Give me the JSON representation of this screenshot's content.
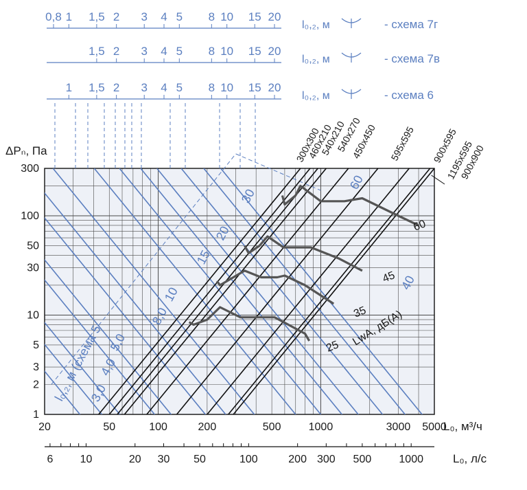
{
  "chart_data": {
    "type": "line",
    "title": "",
    "colors": {
      "blue": "#5b7fc0",
      "grid": "#4a4a4a",
      "plot_bg": "#eef1f7",
      "black": "#111111",
      "noise": "#555555"
    },
    "x_axis_m3h": {
      "label": "L₀, м³/ч",
      "scale": "log",
      "range": [
        20,
        5000
      ],
      "ticks": [
        {
          "v": 20,
          "t": "20"
        },
        {
          "v": 50,
          "t": "50"
        },
        {
          "v": 100,
          "t": "100"
        },
        {
          "v": 200,
          "t": "200"
        },
        {
          "v": 500,
          "t": "500"
        },
        {
          "v": 1000,
          "t": "1000"
        },
        {
          "v": 3000,
          "t": "3000"
        },
        {
          "v": 5000,
          "t": "5000"
        }
      ]
    },
    "x_axis_ls": {
      "label": "L₀, л/с",
      "scale": "log",
      "ticks": [
        {
          "v": 6,
          "t": "6"
        },
        {
          "v": 10,
          "t": "10"
        },
        {
          "v": 20,
          "t": "20"
        },
        {
          "v": 30,
          "t": "30"
        },
        {
          "v": 50,
          "t": "50"
        },
        {
          "v": 100,
          "t": "100"
        },
        {
          "v": 200,
          "t": "200"
        },
        {
          "v": 300,
          "t": "300"
        },
        {
          "v": 500,
          "t": "500"
        },
        {
          "v": 1000,
          "t": "1000"
        }
      ]
    },
    "y_axis": {
      "label": "ΔPₙ, Па",
      "scale": "log",
      "range": [
        1,
        300
      ],
      "ticks": [
        {
          "v": 300,
          "t": "300"
        },
        {
          "v": 100,
          "t": "100"
        },
        {
          "v": 50,
          "t": "50"
        },
        {
          "v": 30,
          "t": "30"
        },
        {
          "v": 10,
          "t": "10"
        },
        {
          "v": 5,
          "t": "5"
        },
        {
          "v": 3,
          "t": "3"
        },
        {
          "v": 2,
          "t": "2"
        },
        {
          "v": 1,
          "t": "1"
        }
      ]
    },
    "throw_scales": [
      {
        "label": "l₀,₂, м",
        "scheme": "- схема 7г",
        "ticks": [
          {
            "v": 0.8,
            "t": "0,8"
          },
          {
            "v": 1,
            "t": "1"
          },
          {
            "v": 1.5,
            "t": "1,5"
          },
          {
            "v": 2,
            "t": "2"
          },
          {
            "v": 3,
            "t": "3"
          },
          {
            "v": 4,
            "t": "4"
          },
          {
            "v": 5,
            "t": "5"
          },
          {
            "v": 8,
            "t": "8"
          },
          {
            "v": 10,
            "t": "10"
          },
          {
            "v": 15,
            "t": "15"
          },
          {
            "v": 20,
            "t": "20"
          }
        ]
      },
      {
        "label": "l₀,₂, м",
        "scheme": "- схема 7в",
        "ticks": [
          {
            "v": 1.5,
            "t": "1,5"
          },
          {
            "v": 2,
            "t": "2"
          },
          {
            "v": 3,
            "t": "3"
          },
          {
            "v": 4,
            "t": "4"
          },
          {
            "v": 5,
            "t": "5"
          },
          {
            "v": 8,
            "t": "8"
          },
          {
            "v": 10,
            "t": "10"
          },
          {
            "v": 15,
            "t": "15"
          },
          {
            "v": 20,
            "t": "20"
          }
        ]
      },
      {
        "label": "l₀,₂, м",
        "scheme": "- схема 6",
        "ticks": [
          {
            "v": 1,
            "t": "1"
          },
          {
            "v": 1.5,
            "t": "1,5"
          },
          {
            "v": 2,
            "t": "2"
          },
          {
            "v": 3,
            "t": "3"
          },
          {
            "v": 4,
            "t": "4"
          },
          {
            "v": 5,
            "t": "5"
          },
          {
            "v": 8,
            "t": "8"
          },
          {
            "v": 10,
            "t": "10"
          },
          {
            "v": 15,
            "t": "15"
          },
          {
            "v": 20,
            "t": "20"
          }
        ]
      }
    ],
    "throw_lines_scheme5": {
      "label": "l₀,₂, м (схема 5",
      "values": [
        {
          "t": "3,0",
          "x": 33
        },
        {
          "t": "4,0",
          "x": 45
        },
        {
          "t": "5,0",
          "x": 58
        },
        {
          "t": "8,0",
          "x": 95
        },
        {
          "t": "10",
          "x": 120
        },
        {
          "t": "15",
          "x": 195
        },
        {
          "t": "20",
          "x": 260
        },
        {
          "t": "30",
          "x": 390
        },
        {
          "t": "40",
          "x": 4200
        },
        {
          "t": "60",
          "x": 1350
        }
      ]
    },
    "sizes": [
      {
        "name": "300x300",
        "x_at_1": 43,
        "x_at_300": 750
      },
      {
        "name": "460x210",
        "x_at_1": 50,
        "x_at_300": 860
      },
      {
        "name": "540x210",
        "x_at_1": 56,
        "x_at_300": 960
      },
      {
        "name": "540x270",
        "x_at_1": 62,
        "x_at_300": 1080
      },
      {
        "name": "450x450",
        "x_at_1": 85,
        "x_at_300": 1480
      },
      {
        "name": "595x595",
        "x_at_1": 130,
        "x_at_300": 2250
      },
      {
        "name": "900x595",
        "x_at_1": 200,
        "x_at_300": 3500
      },
      {
        "name": "1195x595",
        "x_at_1": 270,
        "x_at_300": 4700
      },
      {
        "name": "900x900",
        "x_at_1": 290,
        "x_at_300": 5000
      }
    ],
    "noise": {
      "label": "LwA, дБ(А)",
      "levels": [
        {
          "t": "25",
          "x": 850,
          "y": 5.5
        },
        {
          "t": "35",
          "x": 1200,
          "y": 10
        },
        {
          "t": "45",
          "x": 2000,
          "y": 25
        },
        {
          "t": "60",
          "x": 4000,
          "y": 80
        }
      ],
      "curves": [
        [
          [
            155,
            8.5
          ],
          [
            165,
            8
          ],
          [
            200,
            9
          ],
          [
            240,
            12
          ],
          [
            320,
            9.5
          ],
          [
            400,
            9.5
          ],
          [
            520,
            9.5
          ],
          [
            800,
            6.5
          ],
          [
            850,
            5.5
          ]
        ],
        [
          [
            230,
            22
          ],
          [
            240,
            20
          ],
          [
            290,
            24
          ],
          [
            340,
            28
          ],
          [
            430,
            24
          ],
          [
            540,
            24
          ],
          [
            600,
            25
          ],
          [
            800,
            20
          ],
          [
            1200,
            13
          ]
        ],
        [
          [
            340,
            50
          ],
          [
            360,
            42
          ],
          [
            420,
            50
          ],
          [
            470,
            62
          ],
          [
            590,
            48
          ],
          [
            720,
            48
          ],
          [
            870,
            48
          ],
          [
            1300,
            37
          ],
          [
            1800,
            28
          ]
        ],
        [
          [
            580,
            160
          ],
          [
            600,
            130
          ],
          [
            700,
            160
          ],
          [
            750,
            200
          ],
          [
            1000,
            140
          ],
          [
            1400,
            140
          ],
          [
            1800,
            150
          ],
          [
            3000,
            100
          ],
          [
            4000,
            80
          ]
        ]
      ]
    }
  }
}
